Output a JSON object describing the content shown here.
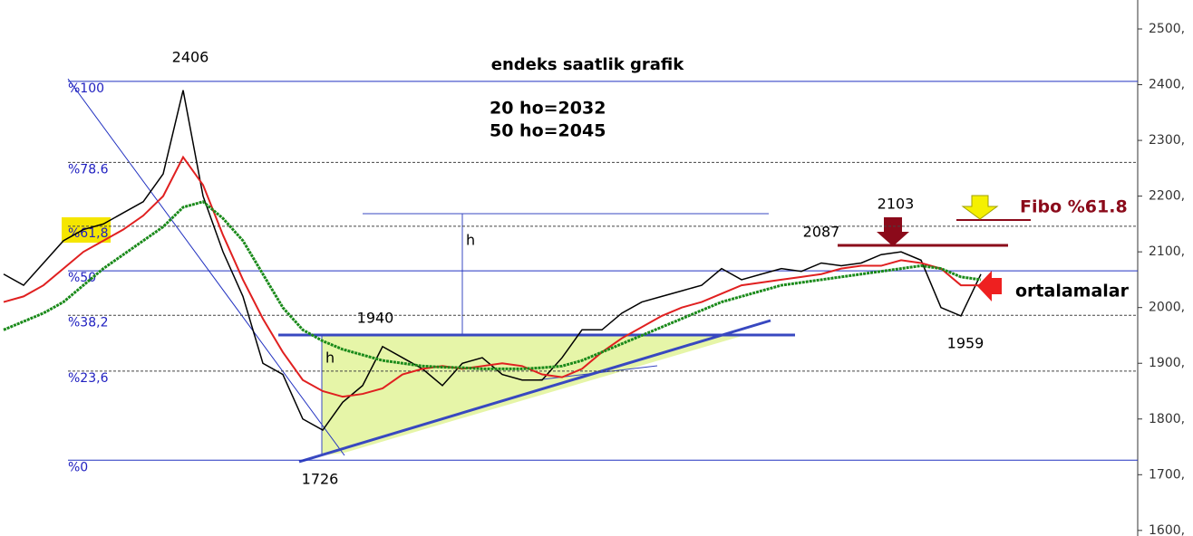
{
  "chart_data": {
    "type": "line",
    "title": "endeks saatlik grafik",
    "annotations": {
      "ma20": "20 ho=2032",
      "ma50": "50 ho=2045",
      "high": "2406",
      "low": "1726",
      "neck": "1940",
      "h_top": "h",
      "h_bottom": "h",
      "peak": "2103",
      "peak_left": "2087",
      "dip": "1959",
      "fibo": "Fibo %61.8",
      "averages": "ortalamalar"
    },
    "categories": [
      null,
      null,
      null,
      null,
      null,
      null,
      null,
      null,
      null,
      null,
      null,
      null,
      null,
      null,
      null,
      null,
      null,
      null,
      null,
      null,
      null,
      null,
      null,
      null,
      null,
      null,
      null,
      null,
      null,
      null,
      null,
      null,
      null,
      null,
      null,
      null,
      null,
      null,
      null,
      null,
      null,
      null,
      null,
      null,
      null,
      null,
      null,
      null,
      null,
      null
    ],
    "series": [
      {
        "color": "#000000",
        "values": [
          2060,
          2040,
          2080,
          2120,
          2140,
          2150,
          2170,
          2190,
          2240,
          2390,
          2200,
          2100,
          2020,
          1900,
          1880,
          1800,
          1780,
          1830,
          1860,
          1930,
          1910,
          1890,
          1860,
          1900,
          1910,
          1880,
          1870,
          1870,
          1910,
          1960,
          1960,
          1990,
          2010,
          2020,
          2030,
          2040,
          2070,
          2050,
          2060,
          2070,
          2065,
          2080,
          2075,
          2080,
          2095,
          2100,
          2085,
          2000,
          1985,
          2060
        ]
      },
      {
        "color": "#e02020",
        "values": [
          2010,
          2020,
          2040,
          2070,
          2100,
          2120,
          2140,
          2165,
          2200,
          2270,
          2220,
          2130,
          2050,
          1980,
          1920,
          1870,
          1850,
          1840,
          1845,
          1855,
          1880,
          1890,
          1895,
          1890,
          1895,
          1900,
          1895,
          1880,
          1875,
          1890,
          1920,
          1945,
          1965,
          1985,
          2000,
          2010,
          2025,
          2040,
          2045,
          2050,
          2055,
          2060,
          2070,
          2075,
          2075,
          2085,
          2080,
          2070,
          2040,
          2040
        ]
      },
      {
        "color": "#1a8a1a",
        "values": [
          1960,
          1975,
          1990,
          2010,
          2040,
          2070,
          2095,
          2120,
          2145,
          2180,
          2190,
          2160,
          2120,
          2060,
          2000,
          1960,
          1940,
          1925,
          1915,
          1905,
          1900,
          1895,
          1893,
          1892,
          1890,
          1890,
          1890,
          1892,
          1895,
          1905,
          1920,
          1935,
          1950,
          1965,
          1980,
          1995,
          2010,
          2020,
          2030,
          2040,
          2045,
          2050,
          2055,
          2060,
          2065,
          2070,
          2075,
          2070,
          2055,
          2050
        ]
      }
    ],
    "fib_levels": [
      {
        "value": 2406,
        "label": "%100"
      },
      {
        "value": 2260.5,
        "label": "%78.6"
      },
      {
        "value": 2146,
        "label": "%61,8"
      },
      {
        "value": 2066,
        "label": "%50"
      },
      {
        "value": 1986,
        "label": "%38,2"
      },
      {
        "value": 1886,
        "label": "%23,6"
      },
      {
        "value": 1726,
        "label": "%0"
      }
    ],
    "ylim": [
      1590,
      2552
    ],
    "yticks": [
      {
        "value": 1600,
        "label": "1600,"
      },
      {
        "value": 1700,
        "label": "1700,"
      },
      {
        "value": 1800,
        "label": "1800,"
      },
      {
        "value": 1900,
        "label": "1900,"
      },
      {
        "value": 2000,
        "label": "2000,"
      },
      {
        "value": 2100,
        "label": "2100,"
      },
      {
        "value": 2200,
        "label": "2200,"
      },
      {
        "value": 2300,
        "label": "2300,"
      },
      {
        "value": 2400,
        "label": "2400,"
      },
      {
        "value": 2500,
        "label": "2500,"
      }
    ]
  }
}
